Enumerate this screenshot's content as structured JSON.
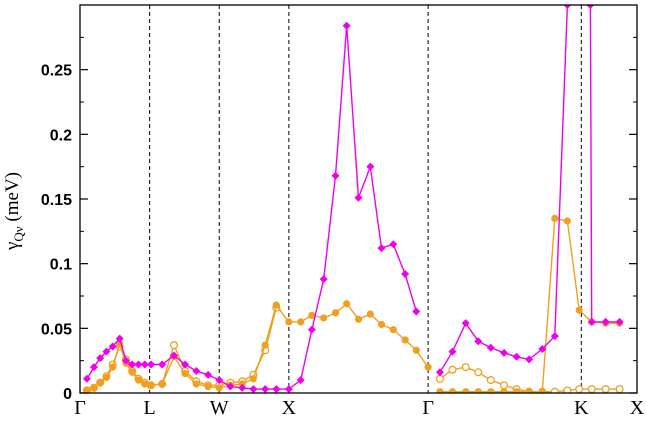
{
  "chart_data": {
    "type": "line",
    "ylabel": {
      "main": "γ",
      "sub": "Qν",
      "unit": " (meV)"
    },
    "xlabel": "",
    "title": "",
    "ylim": [
      0,
      0.3
    ],
    "yticks": [
      {
        "v": 0,
        "label": "0"
      },
      {
        "v": 0.05,
        "label": "0.05"
      },
      {
        "v": 0.1,
        "label": "0.1"
      },
      {
        "v": 0.15,
        "label": "0.15"
      },
      {
        "v": 0.2,
        "label": "0.2"
      },
      {
        "v": 0.25,
        "label": "0.25"
      }
    ],
    "xlim": [
      0,
      8
    ],
    "high_symmetry_points": [
      {
        "x": 0,
        "label": "Γ",
        "line": false
      },
      {
        "x": 1,
        "label": "L",
        "line": true
      },
      {
        "x": 2,
        "label": "W",
        "line": true
      },
      {
        "x": 3,
        "label": "X",
        "line": true
      },
      {
        "x": 5,
        "label": "Γ",
        "line": true
      },
      {
        "x": 7.2,
        "label": "K",
        "line": true
      },
      {
        "x": 8,
        "label": "X",
        "line": false
      }
    ],
    "series": [
      {
        "marker": "diamond",
        "color": "#ee00ee",
        "segments": [
          [
            [
              0.1,
              0.011
            ],
            [
              0.2,
              0.02
            ],
            [
              0.29,
              0.027
            ],
            [
              0.38,
              0.032
            ],
            [
              0.47,
              0.036
            ],
            [
              0.57,
              0.042
            ],
            [
              0.66,
              0.025
            ],
            [
              0.75,
              0.022
            ],
            [
              0.84,
              0.022
            ],
            [
              0.93,
              0.022
            ],
            [
              1.02,
              0.022
            ],
            [
              1.18,
              0.022
            ],
            [
              1.35,
              0.029
            ],
            [
              1.51,
              0.022
            ],
            [
              1.67,
              0.017
            ],
            [
              1.84,
              0.014
            ],
            [
              2.0,
              0.01
            ],
            [
              2.16,
              0.005
            ],
            [
              2.33,
              0.004
            ],
            [
              2.49,
              0.003
            ],
            [
              2.66,
              0.003
            ],
            [
              2.82,
              0.003
            ],
            [
              3.0,
              0.003
            ],
            [
              3.17,
              0.01
            ],
            [
              3.33,
              0.049
            ],
            [
              3.5,
              0.088
            ],
            [
              3.67,
              0.168
            ],
            [
              3.83,
              0.284
            ],
            [
              4.0,
              0.151
            ],
            [
              4.17,
              0.175
            ],
            [
              4.33,
              0.112
            ],
            [
              4.5,
              0.115
            ],
            [
              4.67,
              0.092
            ],
            [
              4.83,
              0.063
            ]
          ],
          [
            [
              5.17,
              0.016
            ],
            [
              5.35,
              0.032
            ],
            [
              5.54,
              0.054
            ],
            [
              5.72,
              0.04
            ],
            [
              5.9,
              0.035
            ],
            [
              6.09,
              0.031
            ],
            [
              6.27,
              0.028
            ],
            [
              6.45,
              0.026
            ],
            [
              6.64,
              0.034
            ],
            [
              6.82,
              0.044
            ],
            [
              7.0,
              0.3
            ]
          ],
          [
            [
              7.33,
              0.3
            ],
            [
              7.35,
              0.055
            ],
            [
              7.55,
              0.055
            ],
            [
              7.75,
              0.055
            ]
          ]
        ]
      },
      {
        "marker": "circle-filled",
        "color": "#f0a020",
        "segments": [
          [
            [
              0.1,
              0.002
            ],
            [
              0.2,
              0.004
            ],
            [
              0.29,
              0.008
            ],
            [
              0.38,
              0.012
            ],
            [
              0.47,
              0.02
            ],
            [
              0.57,
              0.038
            ],
            [
              0.66,
              0.023
            ],
            [
              0.75,
              0.016
            ],
            [
              0.84,
              0.01
            ],
            [
              0.93,
              0.007
            ],
            [
              1.02,
              0.006
            ],
            [
              1.18,
              0.007
            ],
            [
              1.35,
              0.028
            ],
            [
              1.51,
              0.015
            ],
            [
              1.67,
              0.007
            ],
            [
              1.84,
              0.005
            ],
            [
              2.0,
              0.004
            ],
            [
              2.16,
              0.006
            ],
            [
              2.33,
              0.007
            ],
            [
              2.49,
              0.011
            ],
            [
              2.66,
              0.037
            ],
            [
              2.82,
              0.068
            ],
            [
              3.0,
              0.055
            ],
            [
              3.17,
              0.055
            ],
            [
              3.33,
              0.06
            ],
            [
              3.5,
              0.058
            ],
            [
              3.67,
              0.062
            ],
            [
              3.83,
              0.069
            ],
            [
              4.0,
              0.057
            ],
            [
              4.17,
              0.061
            ],
            [
              4.33,
              0.053
            ],
            [
              4.5,
              0.049
            ],
            [
              4.67,
              0.041
            ],
            [
              4.83,
              0.033
            ],
            [
              5.0,
              0.02
            ]
          ],
          [
            [
              5.17,
              0.001
            ],
            [
              5.35,
              0.001
            ],
            [
              5.54,
              0.001
            ],
            [
              5.72,
              0.001
            ],
            [
              5.9,
              0.001
            ],
            [
              6.09,
              0.001
            ],
            [
              6.27,
              0.001
            ],
            [
              6.45,
              0.001
            ],
            [
              6.64,
              0.001
            ],
            [
              6.82,
              0.135
            ],
            [
              7.0,
              0.133
            ],
            [
              7.17,
              0.064
            ],
            [
              7.35,
              0.055
            ],
            [
              7.55,
              0.054
            ],
            [
              7.75,
              0.054
            ]
          ]
        ]
      },
      {
        "marker": "circle-open",
        "color": "#f0a020",
        "segments": [
          [
            [
              0.1,
              0.002
            ],
            [
              0.2,
              0.004
            ],
            [
              0.29,
              0.008
            ],
            [
              0.38,
              0.013
            ],
            [
              0.47,
              0.022
            ],
            [
              0.57,
              0.036
            ],
            [
              0.66,
              0.026
            ],
            [
              0.75,
              0.017
            ],
            [
              0.84,
              0.011
            ],
            [
              0.93,
              0.008
            ],
            [
              1.02,
              0.006
            ],
            [
              1.18,
              0.007
            ],
            [
              1.35,
              0.037
            ],
            [
              1.51,
              0.017
            ],
            [
              1.67,
              0.009
            ],
            [
              1.84,
              0.006
            ],
            [
              2.0,
              0.006
            ],
            [
              2.16,
              0.008
            ],
            [
              2.33,
              0.009
            ],
            [
              2.49,
              0.014
            ],
            [
              2.66,
              0.033
            ],
            [
              2.82,
              0.066
            ]
          ],
          [
            [
              5.17,
              0.011
            ],
            [
              5.35,
              0.018
            ],
            [
              5.54,
              0.02
            ],
            [
              5.72,
              0.016
            ],
            [
              5.9,
              0.01
            ],
            [
              6.09,
              0.006
            ],
            [
              6.27,
              0.003
            ],
            [
              6.45,
              0.001
            ],
            [
              6.64,
              0.001
            ],
            [
              6.82,
              0.001
            ],
            [
              7.0,
              0.002
            ],
            [
              7.17,
              0.003
            ],
            [
              7.35,
              0.003
            ],
            [
              7.55,
              0.003
            ],
            [
              7.75,
              0.003
            ]
          ]
        ]
      }
    ],
    "grid": false,
    "legend": "none"
  }
}
